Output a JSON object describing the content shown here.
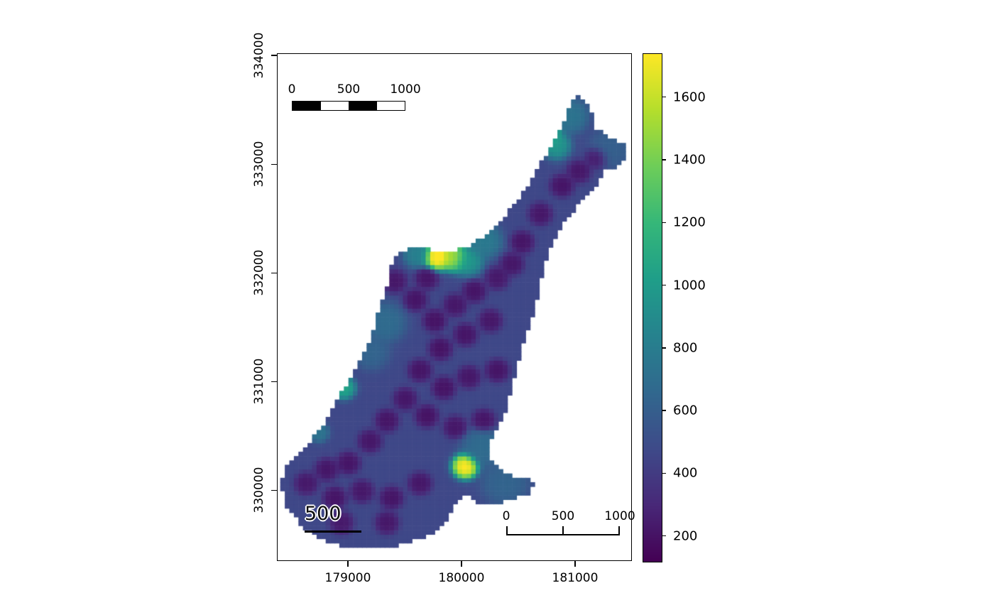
{
  "colors": {
    "background": "#ffffff",
    "axis": "#000000",
    "plot_border": "#000000"
  },
  "chart_data": {
    "type": "heatmap",
    "title": "",
    "xlabel": "",
    "ylabel": "",
    "x_ticks": [
      179000,
      180000,
      181000
    ],
    "y_ticks": [
      330000,
      331000,
      332000,
      333000,
      334000
    ],
    "xlim": [
      178375,
      181500
    ],
    "ylim": [
      329350,
      334020
    ],
    "value_domain": [
      120,
      1740
    ],
    "legend_ticks": [
      200,
      400,
      600,
      800,
      1000,
      1200,
      1400,
      1600
    ],
    "legend_position": "right",
    "grid": {
      "xmin": 178400,
      "xmax": 181560,
      "ymin": 329440,
      "ymax": 333760,
      "cell": 40
    },
    "colormap": {
      "name": "viridis",
      "stops": [
        "#440154",
        "#482878",
        "#3e4a89",
        "#31688e",
        "#26828e",
        "#1f9e89",
        "#35b779",
        "#6dcd59",
        "#b4de2c",
        "#fde725"
      ]
    },
    "base_value": 470,
    "base_weight": 0.08,
    "region_polygon": [
      [
        180990,
        333640
      ],
      [
        181090,
        333580
      ],
      [
        181140,
        333480
      ],
      [
        181160,
        333350
      ],
      [
        181310,
        333240
      ],
      [
        181440,
        333170
      ],
      [
        181460,
        333090
      ],
      [
        181410,
        333010
      ],
      [
        181260,
        332940
      ],
      [
        181190,
        332820
      ],
      [
        181030,
        332650
      ],
      [
        180910,
        332480
      ],
      [
        180800,
        332300
      ],
      [
        180740,
        332120
      ],
      [
        180690,
        331900
      ],
      [
        180640,
        331670
      ],
      [
        180560,
        331420
      ],
      [
        180490,
        331160
      ],
      [
        180430,
        330920
      ],
      [
        180380,
        330710
      ],
      [
        180310,
        330600
      ],
      [
        180260,
        330490
      ],
      [
        180240,
        330330
      ],
      [
        180310,
        330210
      ],
      [
        180440,
        330140
      ],
      [
        180580,
        330120
      ],
      [
        180630,
        330050
      ],
      [
        180590,
        329970
      ],
      [
        180470,
        329930
      ],
      [
        180310,
        329880
      ],
      [
        180140,
        329900
      ],
      [
        180030,
        329970
      ],
      [
        179970,
        329930
      ],
      [
        179840,
        329690
      ],
      [
        179690,
        329580
      ],
      [
        179440,
        329500
      ],
      [
        179190,
        329460
      ],
      [
        178940,
        329490
      ],
      [
        178740,
        329570
      ],
      [
        178580,
        329690
      ],
      [
        178460,
        329860
      ],
      [
        178410,
        330050
      ],
      [
        178430,
        330220
      ],
      [
        178510,
        330290
      ],
      [
        178610,
        330380
      ],
      [
        178700,
        330510
      ],
      [
        178800,
        330640
      ],
      [
        178880,
        330820
      ],
      [
        178950,
        330930
      ],
      [
        179030,
        331060
      ],
      [
        179110,
        331210
      ],
      [
        179180,
        331360
      ],
      [
        179240,
        331560
      ],
      [
        179300,
        331750
      ],
      [
        179350,
        331930
      ],
      [
        179380,
        332080
      ],
      [
        179440,
        332170
      ],
      [
        179560,
        332240
      ],
      [
        179720,
        332220
      ],
      [
        179910,
        332210
      ],
      [
        180060,
        332250
      ],
      [
        180190,
        332340
      ],
      [
        180300,
        332450
      ],
      [
        180410,
        332570
      ],
      [
        180510,
        332710
      ],
      [
        180610,
        332860
      ],
      [
        180700,
        333020
      ],
      [
        180780,
        333170
      ],
      [
        180860,
        333320
      ],
      [
        180920,
        333460
      ]
    ],
    "samples": [
      {
        "x": 179780,
        "y": 332160,
        "v": 1900,
        "s": 55
      },
      {
        "x": 179930,
        "y": 332150,
        "v": 1600,
        "s": 55
      },
      {
        "x": 180050,
        "y": 332120,
        "v": 1000,
        "s": 60
      },
      {
        "x": 179610,
        "y": 332180,
        "v": 850,
        "s": 55
      },
      {
        "x": 180030,
        "y": 330230,
        "v": 1850,
        "s": 50
      },
      {
        "x": 180750,
        "y": 333290,
        "v": 1300,
        "s": 55
      },
      {
        "x": 180830,
        "y": 333180,
        "v": 1000,
        "s": 55
      },
      {
        "x": 180950,
        "y": 333450,
        "v": 760,
        "s": 70
      },
      {
        "x": 181300,
        "y": 333150,
        "v": 620,
        "s": 80
      },
      {
        "x": 178960,
        "y": 330950,
        "v": 1100,
        "s": 45
      },
      {
        "x": 178740,
        "y": 330540,
        "v": 760,
        "s": 40
      },
      {
        "x": 180190,
        "y": 332300,
        "v": 800,
        "s": 70
      },
      {
        "x": 179320,
        "y": 331550,
        "v": 700,
        "s": 80
      },
      {
        "x": 179200,
        "y": 331280,
        "v": 650,
        "s": 70
      },
      {
        "x": 180380,
        "y": 330080,
        "v": 650,
        "s": 90
      },
      {
        "x": 180180,
        "y": 330400,
        "v": 700,
        "s": 80
      },
      {
        "x": 179590,
        "y": 331760,
        "v": 190,
        "s": 45
      },
      {
        "x": 179760,
        "y": 331570,
        "v": 180,
        "s": 45
      },
      {
        "x": 179940,
        "y": 331710,
        "v": 200,
        "s": 45
      },
      {
        "x": 180110,
        "y": 331840,
        "v": 190,
        "s": 45
      },
      {
        "x": 180310,
        "y": 331960,
        "v": 210,
        "s": 45
      },
      {
        "x": 179810,
        "y": 331310,
        "v": 180,
        "s": 45
      },
      {
        "x": 180030,
        "y": 331440,
        "v": 190,
        "s": 45
      },
      {
        "x": 180250,
        "y": 331570,
        "v": 200,
        "s": 45
      },
      {
        "x": 179630,
        "y": 331110,
        "v": 190,
        "s": 45
      },
      {
        "x": 179840,
        "y": 330950,
        "v": 180,
        "s": 45
      },
      {
        "x": 180060,
        "y": 331050,
        "v": 200,
        "s": 45
      },
      {
        "x": 180310,
        "y": 331110,
        "v": 190,
        "s": 45
      },
      {
        "x": 179500,
        "y": 330850,
        "v": 200,
        "s": 45
      },
      {
        "x": 179340,
        "y": 330650,
        "v": 190,
        "s": 45
      },
      {
        "x": 179690,
        "y": 330690,
        "v": 180,
        "s": 45
      },
      {
        "x": 179940,
        "y": 330590,
        "v": 200,
        "s": 45
      },
      {
        "x": 180190,
        "y": 330650,
        "v": 190,
        "s": 45
      },
      {
        "x": 179190,
        "y": 330460,
        "v": 200,
        "s": 45
      },
      {
        "x": 179000,
        "y": 330260,
        "v": 190,
        "s": 45
      },
      {
        "x": 178810,
        "y": 330200,
        "v": 200,
        "s": 45
      },
      {
        "x": 178630,
        "y": 330070,
        "v": 210,
        "s": 45
      },
      {
        "x": 178880,
        "y": 329940,
        "v": 190,
        "s": 45
      },
      {
        "x": 179120,
        "y": 330000,
        "v": 200,
        "s": 45
      },
      {
        "x": 179380,
        "y": 329940,
        "v": 190,
        "s": 45
      },
      {
        "x": 179630,
        "y": 330070,
        "v": 200,
        "s": 45
      },
      {
        "x": 179340,
        "y": 329710,
        "v": 200,
        "s": 45
      },
      {
        "x": 178940,
        "y": 329710,
        "v": 210,
        "s": 45
      },
      {
        "x": 180880,
        "y": 332810,
        "v": 190,
        "s": 45
      },
      {
        "x": 181030,
        "y": 332940,
        "v": 200,
        "s": 45
      },
      {
        "x": 181190,
        "y": 333070,
        "v": 190,
        "s": 45
      },
      {
        "x": 180690,
        "y": 332550,
        "v": 200,
        "s": 45
      },
      {
        "x": 180530,
        "y": 332290,
        "v": 190,
        "s": 45
      },
      {
        "x": 180440,
        "y": 332090,
        "v": 200,
        "s": 45
      },
      {
        "x": 179410,
        "y": 331930,
        "v": 200,
        "s": 45
      },
      {
        "x": 179690,
        "y": 331960,
        "v": 190,
        "s": 45
      }
    ],
    "scalebars": {
      "top": {
        "labels": [
          "0",
          "500",
          "1000"
        ],
        "length_m": 1000,
        "style": "checkered-bar"
      },
      "bottom_right": {
        "labels": [
          "0",
          "500",
          "1000"
        ],
        "length_m": 1000,
        "style": "ruler"
      },
      "bottom_left": {
        "label": "500",
        "length_m": 500,
        "style": "line-with-halo-text"
      }
    }
  }
}
